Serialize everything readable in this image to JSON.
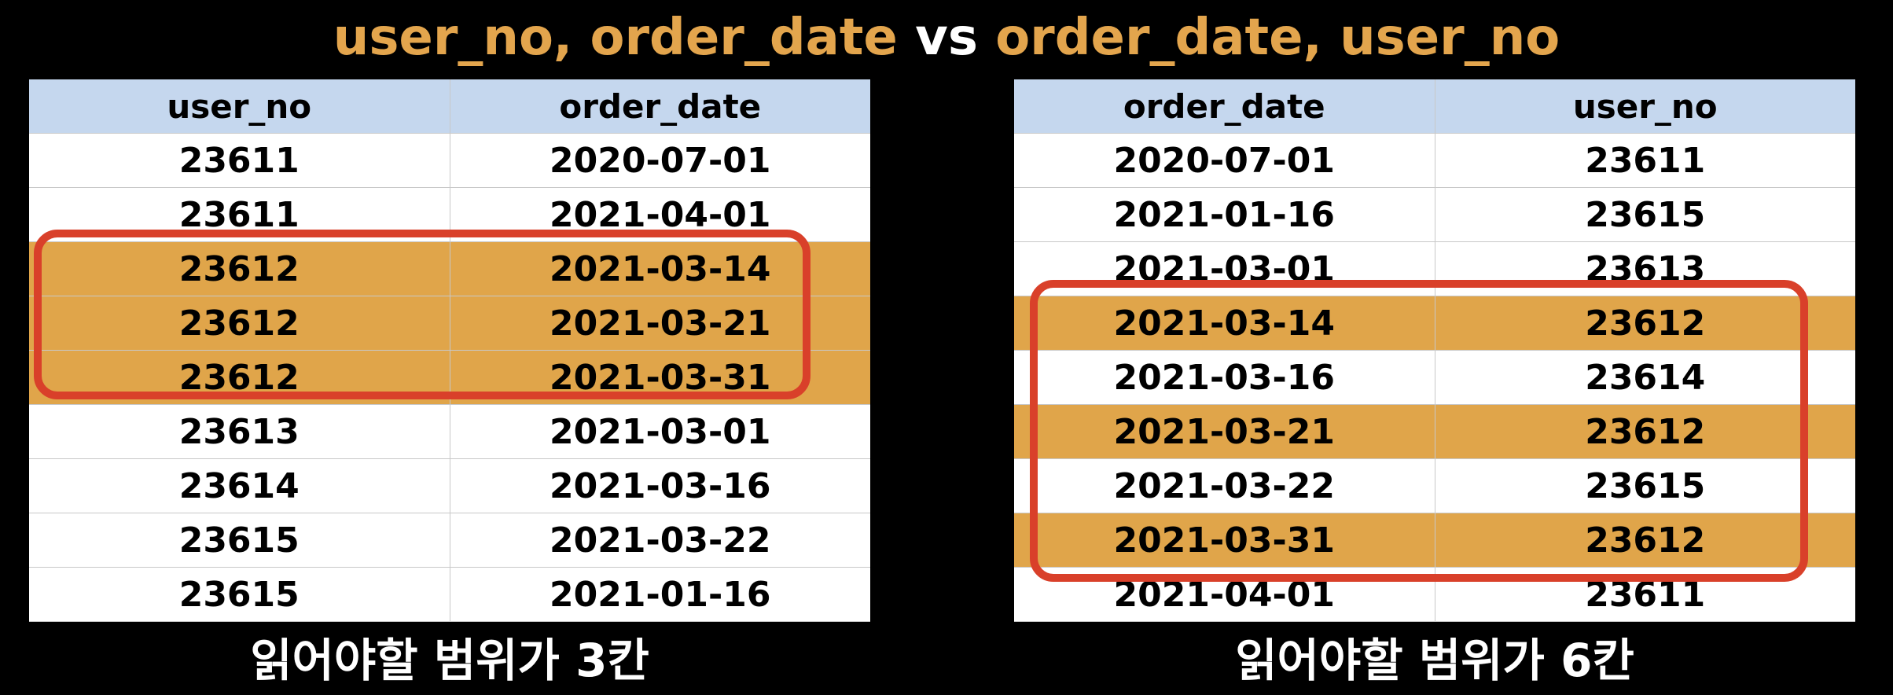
{
  "title": {
    "part1": "user_no, order_date",
    "vs": "vs",
    "part2": "order_date, user_no"
  },
  "left_table": {
    "headers": [
      "user_no",
      "order_date"
    ],
    "rows": [
      {
        "c1": "23611",
        "c2": "2020-07-01",
        "highlight": false
      },
      {
        "c1": "23611",
        "c2": "2021-04-01",
        "highlight": false
      },
      {
        "c1": "23612",
        "c2": "2021-03-14",
        "highlight": true
      },
      {
        "c1": "23612",
        "c2": "2021-03-21",
        "highlight": true
      },
      {
        "c1": "23612",
        "c2": "2021-03-31",
        "highlight": true
      },
      {
        "c1": "23613",
        "c2": "2021-03-01",
        "highlight": false
      },
      {
        "c1": "23614",
        "c2": "2021-03-16",
        "highlight": false
      },
      {
        "c1": "23615",
        "c2": "2021-03-22",
        "highlight": false
      },
      {
        "c1": "23615",
        "c2": "2021-01-16",
        "highlight": false
      }
    ],
    "caption": "읽어야할 범위가 3칸"
  },
  "right_table": {
    "headers": [
      "order_date",
      "user_no"
    ],
    "rows": [
      {
        "c1": "2020-07-01",
        "c2": "23611",
        "highlight": false
      },
      {
        "c1": "2021-01-16",
        "c2": "23615",
        "highlight": false
      },
      {
        "c1": "2021-03-01",
        "c2": "23613",
        "highlight": false
      },
      {
        "c1": "2021-03-14",
        "c2": "23612",
        "highlight": true
      },
      {
        "c1": "2021-03-16",
        "c2": "23614",
        "highlight": false
      },
      {
        "c1": "2021-03-21",
        "c2": "23612",
        "highlight": true
      },
      {
        "c1": "2021-03-22",
        "c2": "23615",
        "highlight": false
      },
      {
        "c1": "2021-03-31",
        "c2": "23612",
        "highlight": true
      },
      {
        "c1": "2021-04-01",
        "c2": "23611",
        "highlight": false
      }
    ],
    "caption": "읽어야할 범위가 6칸"
  },
  "colors": {
    "background": "#000000",
    "title_accent": "#e3a54d",
    "header_bg": "#c5d7ee",
    "highlight_row": "#e0a54a",
    "range_box": "#d9402a"
  }
}
